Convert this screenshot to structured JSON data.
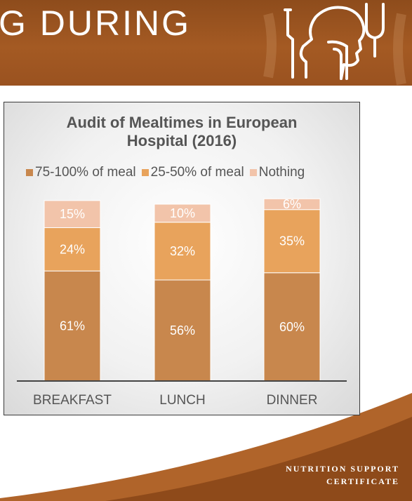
{
  "slide": {
    "title": "G DURING",
    "footer_line1": "NUTRITION SUPPORT",
    "footer_line2": "CERTIFICATE",
    "banner_icon": "feeding-tube-icon",
    "colors": {
      "banner": "#9a5220",
      "swoosh": "#8e4a1a"
    }
  },
  "chart_data": {
    "type": "bar",
    "stacked": true,
    "title_line1": "Audit of Mealtimes in European",
    "title_line2": "Hospital (2016)",
    "categories": [
      "BREAKFAST",
      "LUNCH",
      "DINNER"
    ],
    "series": [
      {
        "name": "75-100% of meal",
        "values": [
          61,
          56,
          60
        ],
        "labels": [
          "61%",
          "56%",
          "60%"
        ],
        "color": "#c8874d"
      },
      {
        "name": "25-50% of meal",
        "values": [
          24,
          32,
          35
        ],
        "labels": [
          "24%",
          "32%",
          "35%"
        ],
        "color": "#e8a35c"
      },
      {
        "name": "Nothing",
        "values": [
          15,
          10,
          6
        ],
        "labels": [
          "15%",
          "10%",
          "6%"
        ],
        "color": "#f2c4aa"
      }
    ],
    "ylim": [
      0,
      105
    ],
    "legend_position": "top",
    "grid": false
  }
}
